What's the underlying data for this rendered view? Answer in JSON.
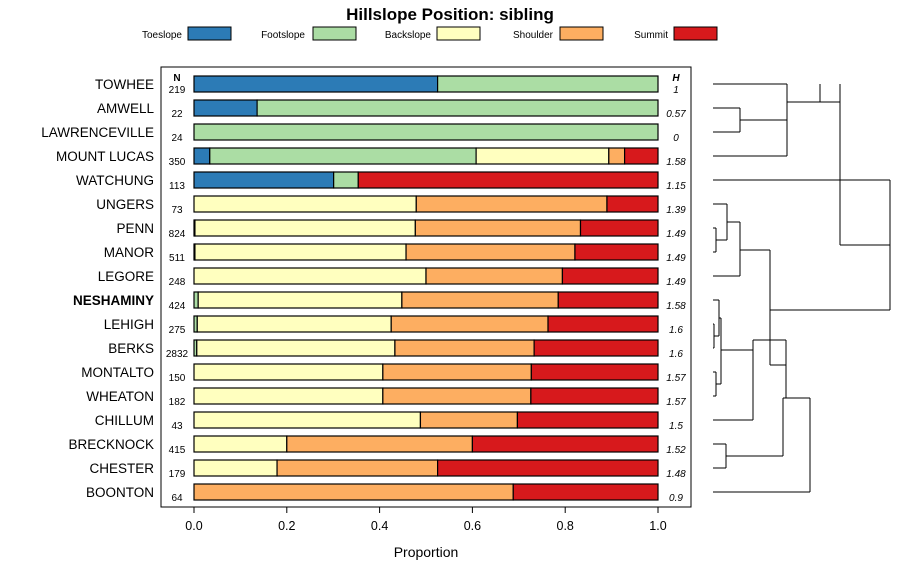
{
  "chart_data": {
    "type": "bar",
    "orientation": "horizontal",
    "stacked": true,
    "title": "Hillslope Position: sibling",
    "xlabel": "Proportion",
    "ylabel": "",
    "xlim": [
      0,
      1
    ],
    "x_ticks": [
      0,
      0.2,
      0.4,
      0.6,
      0.8,
      1
    ],
    "x_tick_labels": [
      "0.0",
      "0.2",
      "0.4",
      "0.6",
      "0.8",
      "1.0"
    ],
    "n_header": "N",
    "h_header": "H",
    "legend": [
      {
        "label": "Toeslope",
        "color": "#2C7BB6"
      },
      {
        "label": "Footslope",
        "color": "#ABDDA4"
      },
      {
        "label": "Backslope",
        "color": "#FFFFBF"
      },
      {
        "label": "Shoulder",
        "color": "#FDAE61"
      },
      {
        "label": "Summit",
        "color": "#D7191C"
      }
    ],
    "series_names": [
      "Toeslope",
      "Footslope",
      "Backslope",
      "Shoulder",
      "Summit"
    ],
    "rows": [
      {
        "name": "TOWHEE",
        "n": "219",
        "h": "1",
        "bold": false,
        "values": [
          0.525,
          0.475,
          0,
          0,
          0
        ]
      },
      {
        "name": "AMWELL",
        "n": "22",
        "h": "0.57",
        "bold": false,
        "values": [
          0.136,
          0.864,
          0,
          0,
          0
        ]
      },
      {
        "name": "LAWRENCEVILLE",
        "n": "24",
        "h": "0",
        "bold": false,
        "values": [
          0,
          1.0,
          0,
          0,
          0
        ]
      },
      {
        "name": "MOUNT LUCAS",
        "n": "350",
        "h": "1.58",
        "bold": false,
        "values": [
          0.034,
          0.574,
          0.286,
          0.034,
          0.072
        ]
      },
      {
        "name": "WATCHUNG",
        "n": "113",
        "h": "1.15",
        "bold": false,
        "values": [
          0.301,
          0.053,
          0,
          0,
          0.646
        ]
      },
      {
        "name": "UNGERS",
        "n": "73",
        "h": "1.39",
        "bold": false,
        "values": [
          0,
          0,
          0.479,
          0.411,
          0.11
        ]
      },
      {
        "name": "PENN",
        "n": "824",
        "h": "1.49",
        "bold": false,
        "values": [
          0,
          0.002,
          0.475,
          0.356,
          0.167
        ]
      },
      {
        "name": "MANOR",
        "n": "511",
        "h": "1.49",
        "bold": false,
        "values": [
          0,
          0.002,
          0.455,
          0.364,
          0.179
        ]
      },
      {
        "name": "LEGORE",
        "n": "248",
        "h": "1.49",
        "bold": false,
        "values": [
          0,
          0,
          0.5,
          0.294,
          0.206
        ]
      },
      {
        "name": "NESHAMINY",
        "n": "424",
        "h": "1.58",
        "bold": true,
        "values": [
          0,
          0.009,
          0.439,
          0.337,
          0.215
        ]
      },
      {
        "name": "LEHIGH",
        "n": "275",
        "h": "1.6",
        "bold": false,
        "values": [
          0,
          0.007,
          0.418,
          0.338,
          0.237
        ]
      },
      {
        "name": "BERKS",
        "n": "2832",
        "h": "1.6",
        "bold": false,
        "values": [
          0,
          0.006,
          0.427,
          0.3,
          0.267
        ]
      },
      {
        "name": "MONTALTO",
        "n": "150",
        "h": "1.57",
        "bold": false,
        "values": [
          0,
          0,
          0.407,
          0.32,
          0.273
        ]
      },
      {
        "name": "WHEATON",
        "n": "182",
        "h": "1.57",
        "bold": false,
        "values": [
          0,
          0,
          0.407,
          0.319,
          0.274
        ]
      },
      {
        "name": "CHILLUM",
        "n": "43",
        "h": "1.5",
        "bold": false,
        "values": [
          0,
          0,
          0.488,
          0.209,
          0.303
        ]
      },
      {
        "name": "BRECKNOCK",
        "n": "415",
        "h": "1.52",
        "bold": false,
        "values": [
          0,
          0,
          0.2,
          0.4,
          0.4
        ]
      },
      {
        "name": "CHESTER",
        "n": "179",
        "h": "1.48",
        "bold": false,
        "values": [
          0,
          0,
          0.179,
          0.346,
          0.475
        ]
      },
      {
        "name": "BOONTON",
        "n": "64",
        "h": "0.9",
        "bold": false,
        "values": [
          0,
          0,
          0,
          0.688,
          0.312
        ]
      }
    ],
    "dendrogram_present": true
  }
}
